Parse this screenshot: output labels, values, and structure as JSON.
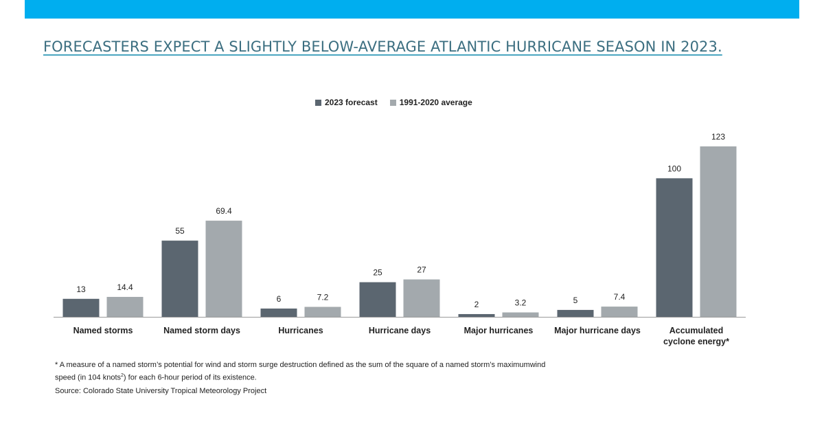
{
  "title": "FORECASTERS EXPECT A SLIGHTLY BELOW-AVERAGE ATLANTIC HURRICANE SEASON IN 2023.",
  "footnote": {
    "before": "* A measure of a  named storm’s potential for wind and storm surge destruction defined as the sum of the square of a named storm’s maximumwind speed (in 104 knots",
    "sup": "2",
    "after": ") for each 6-hour period of its existence."
  },
  "source": "Source: Colorado State University Tropical Meteorology Project",
  "chart_data": {
    "type": "bar",
    "categories": [
      [
        "Named storms"
      ],
      [
        "Named storm days"
      ],
      [
        "Hurricanes"
      ],
      [
        "Hurricane days"
      ],
      [
        "Major hurricanes"
      ],
      [
        "Major hurricane days"
      ],
      [
        "Accumulated",
        "cyclone energy*"
      ]
    ],
    "series": [
      {
        "name": "2023 forecast",
        "color": "#5b6670",
        "values": [
          13,
          55,
          6,
          25,
          2,
          5,
          100
        ],
        "labels": [
          "13",
          "55",
          "6",
          "25",
          "2",
          "5",
          "100"
        ]
      },
      {
        "name": "1991-2020 average",
        "color": "#a3a9ad",
        "values": [
          14.4,
          69.4,
          7.2,
          27,
          3.2,
          7.4,
          123
        ],
        "labels": [
          "14.4",
          "69.4",
          "7.2",
          "27",
          "3.2",
          "7.4",
          "123"
        ]
      }
    ],
    "ylim": [
      0,
      123
    ],
    "legend_position": "top-center",
    "grid": false
  }
}
